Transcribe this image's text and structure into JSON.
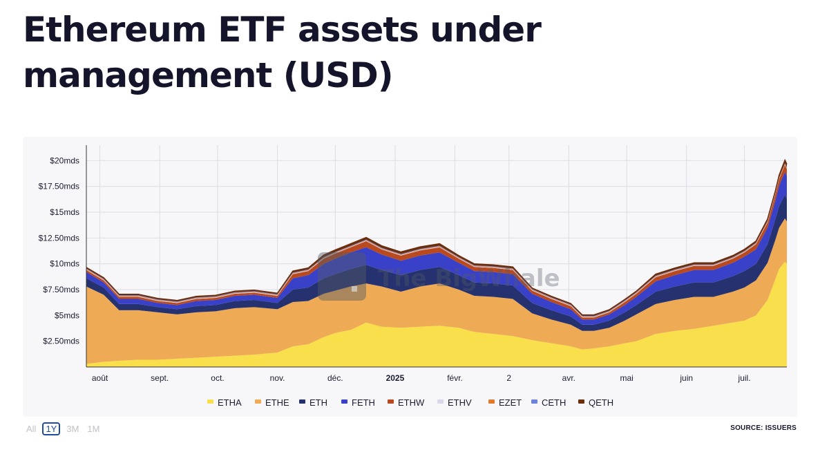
{
  "title": "Ethereum ETF assets under management (USD)",
  "watermark": "The BigWhale",
  "range_buttons": [
    {
      "label": "All",
      "active": false
    },
    {
      "label": "1Y",
      "active": true
    },
    {
      "label": "3M",
      "active": false
    },
    {
      "label": "1M",
      "active": false
    }
  ],
  "source": "SOURCE: ISSUERS",
  "colors": {
    "ETHA": "#f8df4b",
    "ETHE": "#efaa55",
    "ETH": "#25326f",
    "FETH": "#3941c8",
    "ETHW": "#b94a20",
    "ETHV": "#d9d7ec",
    "EZET": "#e27a2e",
    "CETH": "#6f82db",
    "QETH": "#6b2e0c"
  },
  "chart_data": {
    "type": "area",
    "stacked": true,
    "title": "Ethereum ETF assets under management (USD)",
    "xlabel": "",
    "ylabel": "",
    "unit": "USD",
    "y_ticks": [
      "$2.50mds",
      "$5mds",
      "$7.50mds",
      "$10mds",
      "$12.50mds",
      "$15mds",
      "$17.50mds",
      "$20mds"
    ],
    "y_tick_values": [
      2.5,
      5,
      7.5,
      10,
      12.5,
      15,
      17.5,
      20
    ],
    "ylim": [
      0,
      21.5
    ],
    "x_ticks": [
      {
        "label": "août",
        "day": 0,
        "bold": false
      },
      {
        "label": "sept.",
        "day": 31,
        "bold": false
      },
      {
        "label": "oct.",
        "day": 61,
        "bold": false
      },
      {
        "label": "nov.",
        "day": 92,
        "bold": false
      },
      {
        "label": "déc.",
        "day": 122,
        "bold": false
      },
      {
        "label": "2025",
        "day": 153,
        "bold": true
      },
      {
        "label": "févr.",
        "day": 184,
        "bold": false
      },
      {
        "label": "2",
        "day": 212,
        "bold": false
      },
      {
        "label": "avr.",
        "day": 243,
        "bold": false
      },
      {
        "label": "mai",
        "day": 273,
        "bold": false
      },
      {
        "label": "juin",
        "day": 304,
        "bold": false
      },
      {
        "label": "juil.",
        "day": 334,
        "bold": false
      }
    ],
    "grid": true,
    "legend_position": "bottom",
    "x_days": [
      -7,
      2,
      10,
      20,
      30,
      40,
      50,
      60,
      70,
      80,
      92,
      100,
      108,
      116,
      122,
      130,
      138,
      146,
      156,
      166,
      176,
      186,
      194,
      204,
      214,
      224,
      234,
      244,
      250,
      256,
      264,
      272,
      278,
      288,
      298,
      308,
      318,
      328,
      334,
      340,
      346,
      350,
      352,
      355,
      356
    ],
    "series": [
      {
        "name": "ETHA",
        "values": [
          0.3,
          0.5,
          0.6,
          0.7,
          0.7,
          0.8,
          0.9,
          1.0,
          1.1,
          1.2,
          1.4,
          2.0,
          2.2,
          2.9,
          3.3,
          3.6,
          4.3,
          3.9,
          3.8,
          3.9,
          4.0,
          3.8,
          3.4,
          3.2,
          3.0,
          2.6,
          2.3,
          2.0,
          1.7,
          1.8,
          2.0,
          2.3,
          2.5,
          3.2,
          3.5,
          3.7,
          4.0,
          4.3,
          4.5,
          5.0,
          6.5,
          8.5,
          9.5,
          10.2,
          10.0
        ]
      },
      {
        "name": "ETHE",
        "values": [
          7.5,
          6.5,
          4.9,
          4.8,
          4.6,
          4.3,
          4.4,
          4.4,
          4.6,
          4.6,
          4.2,
          4.3,
          4.2,
          4.2,
          4.1,
          4.2,
          3.8,
          3.9,
          3.5,
          3.9,
          4.1,
          3.7,
          3.5,
          3.6,
          3.6,
          2.6,
          2.3,
          2.1,
          1.8,
          1.7,
          1.8,
          2.2,
          2.6,
          2.9,
          3.0,
          3.1,
          2.8,
          3.0,
          3.2,
          3.4,
          3.6,
          3.8,
          4.0,
          4.2,
          4.1
        ]
      },
      {
        "name": "ETH",
        "values": [
          0.8,
          0.7,
          0.6,
          0.6,
          0.5,
          0.5,
          0.6,
          0.6,
          0.7,
          0.7,
          0.6,
          1.2,
          1.3,
          1.5,
          1.6,
          1.7,
          1.8,
          1.6,
          1.6,
          1.6,
          1.6,
          1.4,
          1.3,
          1.3,
          1.3,
          1.0,
          0.9,
          0.8,
          0.6,
          0.6,
          0.7,
          0.8,
          0.9,
          1.2,
          1.3,
          1.4,
          1.4,
          1.5,
          1.6,
          1.6,
          1.8,
          2.0,
          2.1,
          2.3,
          2.2
        ]
      },
      {
        "name": "FETH",
        "values": [
          0.6,
          0.5,
          0.5,
          0.5,
          0.4,
          0.4,
          0.5,
          0.5,
          0.5,
          0.5,
          0.5,
          1.1,
          1.2,
          1.4,
          1.5,
          1.6,
          1.7,
          1.5,
          1.4,
          1.4,
          1.4,
          1.2,
          1.1,
          1.1,
          1.1,
          0.9,
          0.8,
          0.7,
          0.5,
          0.5,
          0.6,
          0.7,
          0.8,
          1.0,
          1.1,
          1.2,
          1.2,
          1.3,
          1.4,
          1.4,
          1.6,
          1.8,
          2.0,
          2.2,
          2.2
        ]
      },
      {
        "name": "ETHW",
        "values": [
          0.2,
          0.2,
          0.2,
          0.2,
          0.2,
          0.2,
          0.2,
          0.2,
          0.2,
          0.2,
          0.2,
          0.4,
          0.4,
          0.5,
          0.5,
          0.5,
          0.6,
          0.5,
          0.5,
          0.5,
          0.5,
          0.4,
          0.4,
          0.4,
          0.4,
          0.3,
          0.3,
          0.3,
          0.2,
          0.2,
          0.2,
          0.3,
          0.3,
          0.4,
          0.4,
          0.4,
          0.4,
          0.4,
          0.4,
          0.5,
          0.5,
          0.6,
          0.6,
          0.7,
          0.7
        ]
      },
      {
        "name": "ETHV",
        "values": [
          0.05,
          0.05,
          0.05,
          0.05,
          0.05,
          0.05,
          0.05,
          0.05,
          0.05,
          0.05,
          0.05,
          0.05,
          0.05,
          0.05,
          0.05,
          0.05,
          0.05,
          0.05,
          0.05,
          0.05,
          0.05,
          0.05,
          0.05,
          0.05,
          0.05,
          0.05,
          0.05,
          0.05,
          0.05,
          0.05,
          0.05,
          0.05,
          0.05,
          0.05,
          0.05,
          0.05,
          0.05,
          0.05,
          0.05,
          0.05,
          0.05,
          0.05,
          0.05,
          0.05,
          0.05
        ]
      },
      {
        "name": "EZET",
        "values": [
          0.05,
          0.05,
          0.05,
          0.05,
          0.05,
          0.05,
          0.05,
          0.05,
          0.05,
          0.05,
          0.05,
          0.05,
          0.05,
          0.05,
          0.05,
          0.05,
          0.05,
          0.05,
          0.05,
          0.05,
          0.05,
          0.05,
          0.05,
          0.05,
          0.05,
          0.05,
          0.05,
          0.05,
          0.05,
          0.05,
          0.05,
          0.05,
          0.05,
          0.05,
          0.05,
          0.05,
          0.05,
          0.05,
          0.05,
          0.05,
          0.05,
          0.05,
          0.05,
          0.05,
          0.05
        ]
      },
      {
        "name": "CETH",
        "values": [
          0.05,
          0.05,
          0.05,
          0.05,
          0.05,
          0.05,
          0.05,
          0.05,
          0.05,
          0.05,
          0.05,
          0.05,
          0.05,
          0.05,
          0.05,
          0.05,
          0.05,
          0.05,
          0.05,
          0.05,
          0.05,
          0.05,
          0.05,
          0.05,
          0.05,
          0.05,
          0.05,
          0.05,
          0.05,
          0.05,
          0.05,
          0.05,
          0.05,
          0.05,
          0.05,
          0.05,
          0.05,
          0.05,
          0.05,
          0.05,
          0.05,
          0.05,
          0.05,
          0.05,
          0.05
        ]
      },
      {
        "name": "QETH",
        "values": [
          0.1,
          0.1,
          0.1,
          0.1,
          0.1,
          0.1,
          0.1,
          0.1,
          0.1,
          0.1,
          0.1,
          0.15,
          0.15,
          0.2,
          0.2,
          0.2,
          0.2,
          0.2,
          0.2,
          0.2,
          0.2,
          0.15,
          0.15,
          0.15,
          0.15,
          0.1,
          0.1,
          0.1,
          0.1,
          0.1,
          0.1,
          0.1,
          0.1,
          0.15,
          0.15,
          0.15,
          0.15,
          0.15,
          0.15,
          0.15,
          0.2,
          0.2,
          0.25,
          0.3,
          0.3
        ]
      }
    ]
  }
}
